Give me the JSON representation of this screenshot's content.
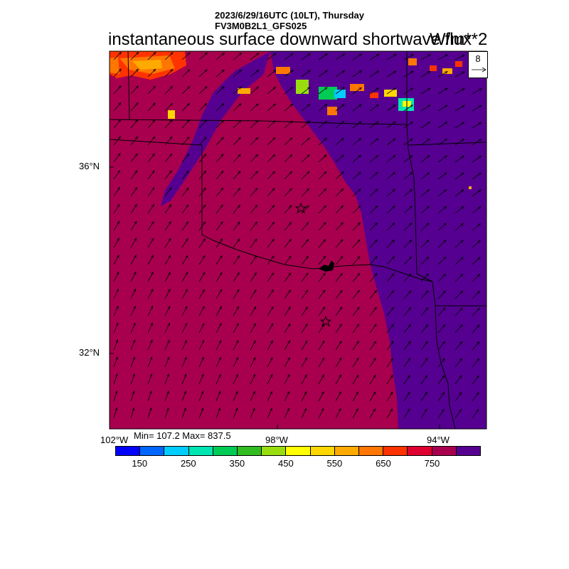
{
  "header": {
    "time_line": "2023/6/29/16UTC (10LT), Thursday",
    "model_line": "FV3M0B2L1_GFS025",
    "title": "instantaneous surface downward shortwave flux",
    "units": "W/m**2"
  },
  "vector_reference": {
    "value": "8"
  },
  "lat_labels": [
    "36°N",
    "32°N"
  ],
  "lon_labels": [
    "102°W",
    "98°W",
    "94°W"
  ],
  "stats": "Min= 107.2 Max= 837.5",
  "colorbar": {
    "colors": [
      "#0000ff",
      "#0066ff",
      "#00ccff",
      "#00e6b3",
      "#00cc55",
      "#33bb22",
      "#99dd11",
      "#ffff00",
      "#ffd700",
      "#ffaa00",
      "#ff7700",
      "#ff3300",
      "#e00030",
      "#a8004e",
      "#550090"
    ],
    "labels": [
      "150",
      "250",
      "350",
      "450",
      "550",
      "650",
      "750"
    ]
  },
  "map": {
    "main_fill": "#a8004e",
    "cloud_fill": "#550090",
    "station_markers": 2
  }
}
